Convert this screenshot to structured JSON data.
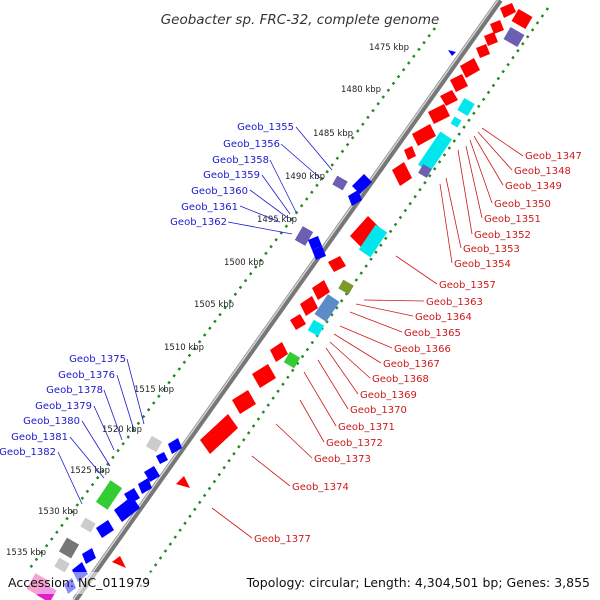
{
  "title": "Geobacter sp. FRC-32, complete genome",
  "accession": "Accession: NC_011979",
  "topology": "Topology: circular; Length: 4,304,501 bp; Genes: 3,855",
  "colors": {
    "forward": "#ff0000",
    "reverse": "#0000ff",
    "cyan": "#00e8ee",
    "purple": "#6a5fb0",
    "steel": "#5b8cc8",
    "green": "#33cc33",
    "olive": "#7a9a2a",
    "gray": "#cccccc",
    "darkgray": "#777777",
    "pink": "#ee3399",
    "dotted": "#228822",
    "blue_label": "#1a1acc",
    "red_label": "#cc1a1a"
  },
  "kbp_ticks": [
    "1475 kbp",
    "1480 kbp",
    "1485 kbp",
    "1490 kbp",
    "1495 kbp",
    "1500 kbp",
    "1505 kbp",
    "1510 kbp",
    "1515 kbp",
    "1520 kbp",
    "1525 kbp",
    "1530 kbp",
    "1535 kbp"
  ],
  "left_labels": [
    "Geob_1355",
    "Geob_1356",
    "Geob_1358",
    "Geob_1359",
    "Geob_1360",
    "Geob_1361",
    "Geob_1362",
    "Geob_1375",
    "Geob_1376",
    "Geob_1378",
    "Geob_1379",
    "Geob_1380",
    "Geob_1381",
    "Geob_1382"
  ],
  "right_labels": [
    "Geob_1347",
    "Geob_1348",
    "Geob_1349",
    "Geob_1350",
    "Geob_1351",
    "Geob_1352",
    "Geob_1353",
    "Geob_1354",
    "Geob_1357",
    "Geob_1363",
    "Geob_1364",
    "Geob_1365",
    "Geob_1366",
    "Geob_1367",
    "Geob_1368",
    "Geob_1369",
    "Geob_1370",
    "Geob_1371",
    "Geob_1372",
    "Geob_1373",
    "Geob_1374",
    "Geob_1377"
  ]
}
